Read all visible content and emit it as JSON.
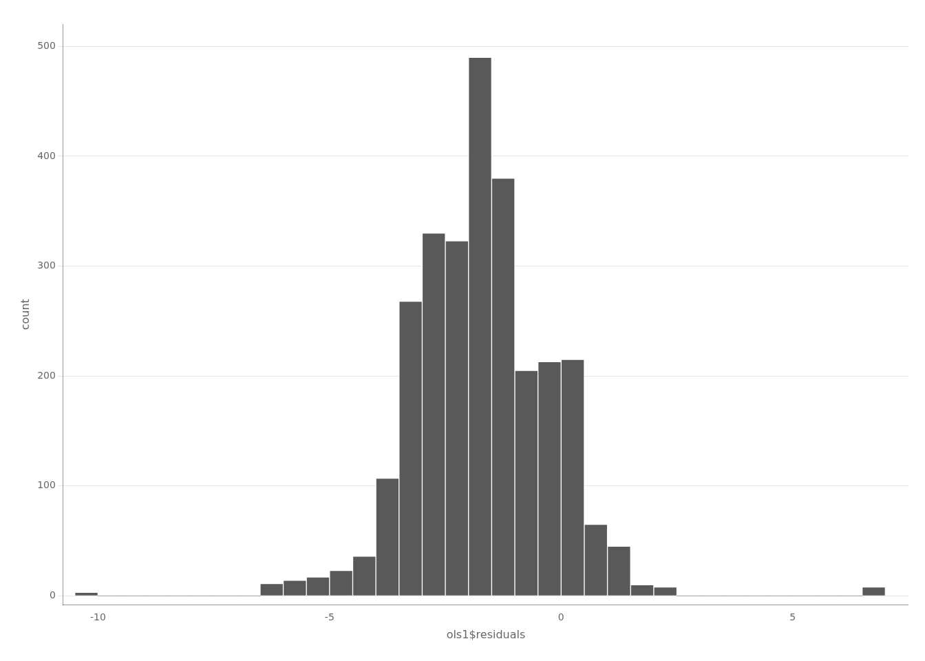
{
  "chart_data": {
    "type": "histogram",
    "xlabel": "ols1$residuals",
    "ylabel": "count",
    "bins": [
      -10.5,
      -10.0,
      -9.5,
      -9.0,
      -8.5,
      -8.0,
      -7.5,
      -7.0,
      -6.5,
      -6.0,
      -5.5,
      -5.0,
      -4.5,
      -4.0,
      -3.5,
      -3.0,
      -2.5,
      -2.0,
      -1.5,
      -1.0,
      -0.5,
      0.0,
      0.5,
      1.0,
      1.5,
      2.0,
      2.5,
      3.0,
      3.5,
      4.0,
      4.5,
      5.0,
      5.5,
      6.0,
      6.5,
      7.0
    ],
    "values": [
      3,
      0,
      0,
      0,
      0,
      0,
      0,
      0,
      11,
      14,
      17,
      23,
      36,
      107,
      268,
      330,
      323,
      490,
      380,
      205,
      213,
      215,
      65,
      45,
      10,
      8,
      0,
      0,
      0,
      0,
      0,
      0,
      0,
      0,
      8
    ],
    "color": "#595959",
    "xlim": [
      -10.75,
      7.5
    ],
    "ylim": [
      -8,
      520
    ],
    "xticks": [
      -10,
      -5,
      0,
      5
    ],
    "yticks": [
      0,
      100,
      200,
      300,
      400,
      500
    ],
    "grid": "y"
  }
}
